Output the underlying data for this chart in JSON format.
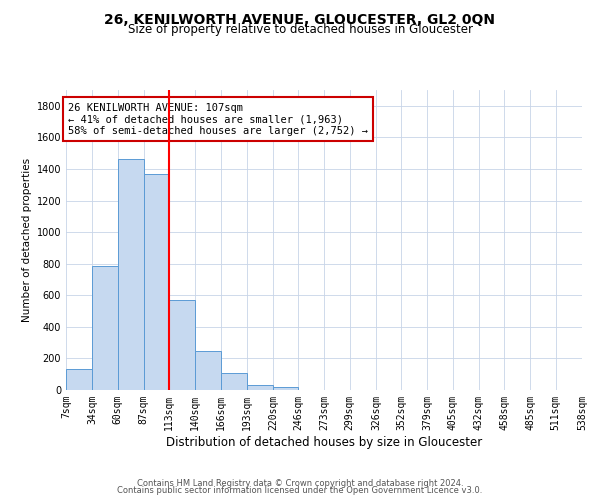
{
  "title": "26, KENILWORTH AVENUE, GLOUCESTER, GL2 0QN",
  "subtitle": "Size of property relative to detached houses in Gloucester",
  "xlabel": "Distribution of detached houses by size in Gloucester",
  "ylabel": "Number of detached properties",
  "bin_edges": [
    7,
    34,
    60,
    87,
    113,
    140,
    166,
    193,
    220,
    246,
    273,
    299,
    326,
    352,
    379,
    405,
    432,
    458,
    485,
    511,
    538
  ],
  "bar_values": [
    130,
    785,
    1463,
    1365,
    570,
    250,
    107,
    30,
    18,
    0,
    0,
    0,
    0,
    0,
    0,
    0,
    0,
    0,
    0,
    0
  ],
  "bar_color": "#c6d9f0",
  "bar_edge_color": "#5b9bd5",
  "red_line_x": 113,
  "annotation_text": "26 KENILWORTH AVENUE: 107sqm\n← 41% of detached houses are smaller (1,963)\n58% of semi-detached houses are larger (2,752) →",
  "annotation_box_color": "#ffffff",
  "annotation_box_edge_color": "#cc0000",
  "ylim": [
    0,
    1900
  ],
  "ytick_interval": 200,
  "footnote1": "Contains HM Land Registry data © Crown copyright and database right 2024.",
  "footnote2": "Contains public sector information licensed under the Open Government Licence v3.0.",
  "bg_color": "#ffffff",
  "grid_color": "#c8d4e8",
  "title_fontsize": 10,
  "subtitle_fontsize": 8.5,
  "xlabel_fontsize": 8.5,
  "ylabel_fontsize": 7.5,
  "tick_fontsize": 7,
  "annotation_fontsize": 7.5,
  "footnote_fontsize": 6
}
